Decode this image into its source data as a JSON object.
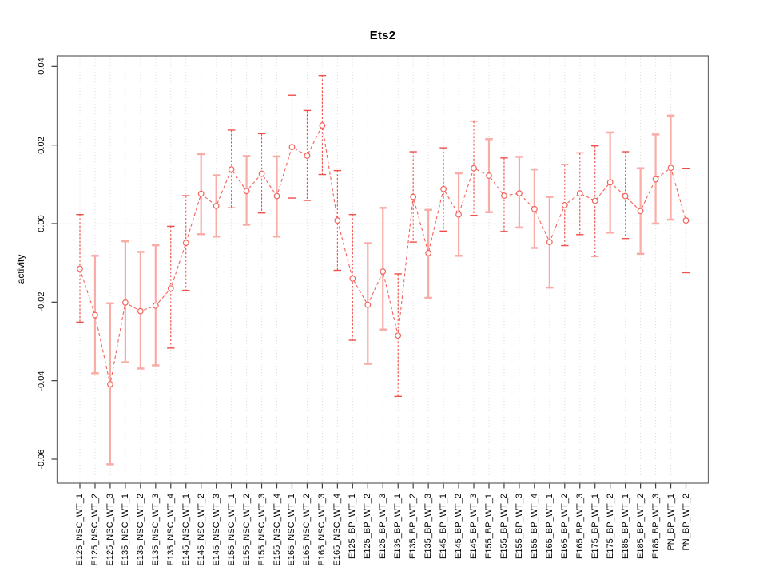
{
  "page": {
    "background": "#ffffff"
  },
  "chart_data": {
    "type": "line",
    "title": "Ets2",
    "xlabel": "",
    "ylabel": "activity",
    "legend": "none",
    "grid": "vertical dotted gridline at every category; dotted horizontal line at y=0",
    "marker": "open-circle",
    "line_style": "dashed",
    "ylim": [
      -0.066,
      0.043
    ],
    "y_ticks": [
      0.04,
      0.02,
      0.0,
      -0.02,
      -0.04,
      -0.06
    ],
    "y_tick_labels": [
      "0.04",
      "0.02",
      "0.00",
      "-0.02",
      "-0.04",
      "-0.06"
    ],
    "categories": [
      "E125_NSC_WT_1",
      "E125_NSC_WT_2",
      "E125_NSC_WT_3",
      "E135_NSC_WT_1",
      "E135_NSC_WT_2",
      "E135_NSC_WT_3",
      "E135_NSC_WT_4",
      "E145_NSC_WT_1",
      "E145_NSC_WT_2",
      "E145_NSC_WT_3",
      "E155_NSC_WT_1",
      "E155_NSC_WT_2",
      "E155_NSC_WT_3",
      "E155_NSC_WT_4",
      "E165_NSC_WT_1",
      "E165_NSC_WT_2",
      "E165_NSC_WT_3",
      "E165_NSC_WT_4",
      "E125_BP_WT_1",
      "E125_BP_WT_2",
      "E125_BP_WT_3",
      "E135_BP_WT_1",
      "E135_BP_WT_2",
      "E135_BP_WT_3",
      "E145_BP_WT_1",
      "E145_BP_WT_2",
      "E145_BP_WT_3",
      "E155_BP_WT_1",
      "E155_BP_WT_2",
      "E155_BP_WT_3",
      "E155_BP_WT_4",
      "E165_BP_WT_1",
      "E165_BP_WT_2",
      "E165_BP_WT_3",
      "E175_BP_WT_1",
      "E175_BP_WT_2",
      "E185_BP_WT_1",
      "E185_BP_WT_2",
      "E185_BP_WT_3",
      "PN_BP_WT_1",
      "PN_BP_WT_2"
    ],
    "series": [
      {
        "name": "activity",
        "values": [
          -0.0115,
          -0.0233,
          -0.0409,
          -0.0201,
          -0.0223,
          -0.0209,
          -0.0165,
          -0.0049,
          0.0076,
          0.0045,
          0.0138,
          0.0083,
          0.0127,
          0.007,
          0.0195,
          0.0173,
          0.025,
          0.0008,
          -0.014,
          -0.0207,
          -0.0122,
          -0.0285,
          0.0068,
          -0.0075,
          0.0088,
          0.0023,
          0.0141,
          0.0122,
          0.0071,
          0.0077,
          0.0037,
          -0.0047,
          0.0047,
          0.0077,
          0.0058,
          0.0105,
          0.007,
          0.0032,
          0.0113,
          0.0142,
          0.0008
        ],
        "lower": [
          -0.0251,
          -0.0381,
          -0.0613,
          -0.0353,
          -0.0369,
          -0.0361,
          -0.0317,
          -0.017,
          -0.0027,
          -0.0033,
          0.004,
          -0.0003,
          0.0027,
          -0.0033,
          0.0065,
          0.0059,
          0.0125,
          -0.0119,
          -0.0297,
          -0.0357,
          -0.027,
          -0.044,
          -0.0047,
          -0.0189,
          -0.0019,
          -0.0082,
          0.0021,
          0.0029,
          -0.002,
          -0.001,
          -0.0062,
          -0.0163,
          -0.0056,
          -0.0028,
          -0.0083,
          -0.0023,
          -0.0038,
          -0.0077,
          0.0,
          0.001,
          -0.0125
        ],
        "upper": [
          0.0023,
          -0.0082,
          -0.0203,
          -0.0045,
          -0.0072,
          -0.0055,
          -0.0007,
          0.0071,
          0.0177,
          0.0123,
          0.0238,
          0.0172,
          0.0229,
          0.0171,
          0.0327,
          0.0288,
          0.0377,
          0.0135,
          0.0023,
          -0.005,
          0.004,
          -0.0128,
          0.0183,
          0.0035,
          0.0193,
          0.0128,
          0.0261,
          0.0215,
          0.0167,
          0.017,
          0.0138,
          0.0068,
          0.015,
          0.018,
          0.0198,
          0.0232,
          0.0183,
          0.0141,
          0.0227,
          0.0275,
          0.0141
        ]
      }
    ],
    "bar_styles": [
      "dark",
      "light",
      "light",
      "light",
      "light",
      "light",
      "dark",
      "dark",
      "light",
      "light",
      "dark",
      "light",
      "dark",
      "light",
      "dark",
      "dark",
      "dark",
      "dark",
      "dark",
      "light",
      "light",
      "dark",
      "dark",
      "light",
      "dark",
      "light",
      "dark",
      "light",
      "dark",
      "light",
      "light",
      "light",
      "dark",
      "dark",
      "dark",
      "light",
      "dark",
      "light",
      "light",
      "light",
      "dark"
    ],
    "colors": {
      "line": "#f4635c",
      "marker": "#f4635c",
      "error_bar_light": "#f9aba6",
      "error_bar_dark": "#ef4f48",
      "grid": "#dcdcdc",
      "axis_box": "#6b6b6b",
      "tick": "#3c3c3c",
      "text": "#000000"
    }
  }
}
